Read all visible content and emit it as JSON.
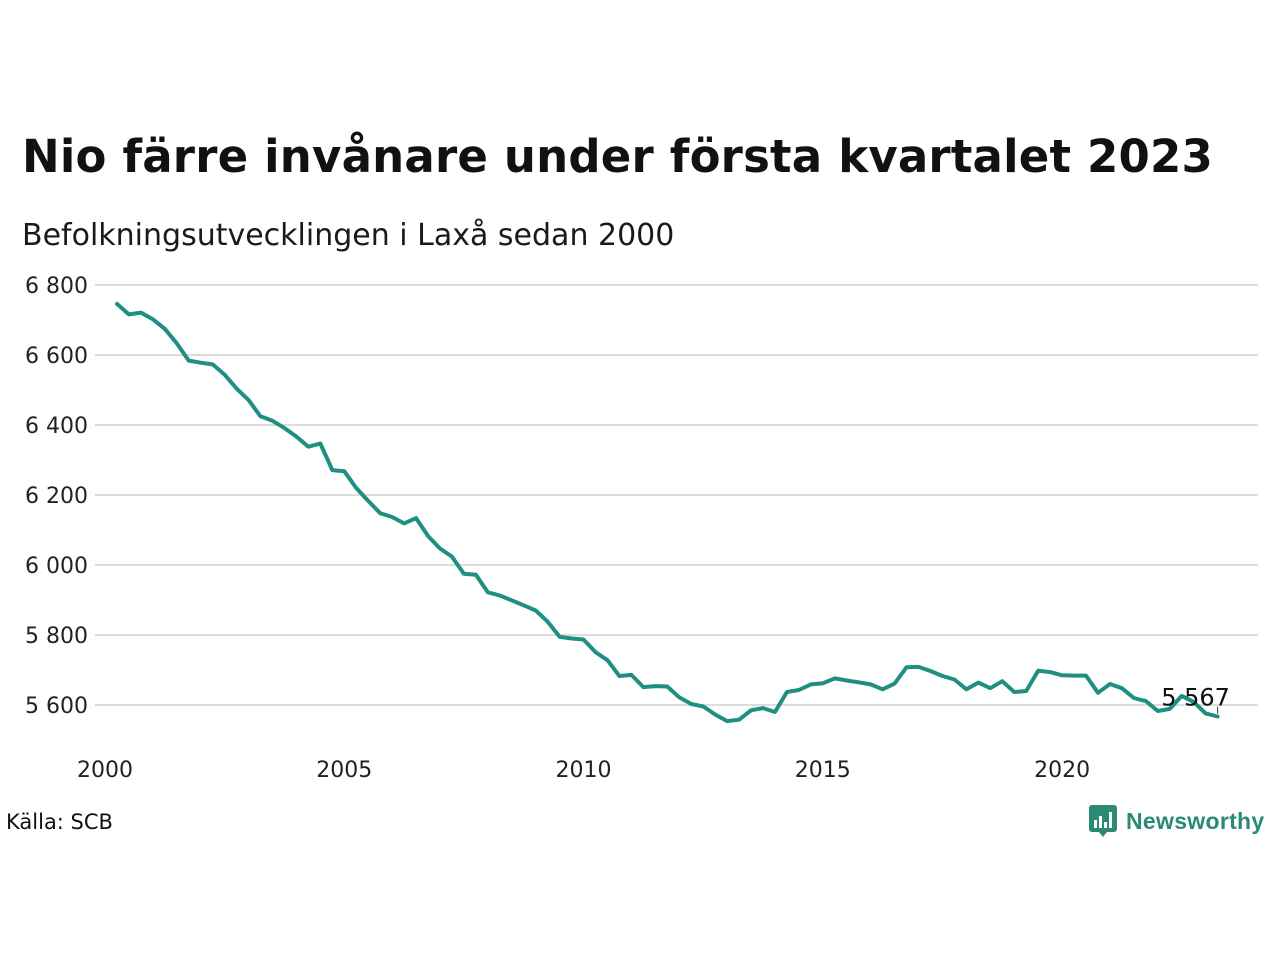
{
  "title": "Nio färre invånare under första kvartalet 2023",
  "subtitle": "Befolkningsutvecklingen i Laxå sedan 2000",
  "source": "Källa: SCB",
  "brand": {
    "name": "Newsworthy",
    "icon": "newsworthy-logo-icon",
    "color": "#2b8a73"
  },
  "chart_data": {
    "type": "line",
    "title": "Nio färre invånare under första kvartalet 2023",
    "subtitle": "Befolkningsutvecklingen i Laxå sedan 2000",
    "xlabel": "",
    "ylabel": "",
    "ylim": [
      5500,
      6800
    ],
    "yticks": [
      5600,
      5800,
      6000,
      6200,
      6400,
      6600,
      6800
    ],
    "ytick_labels": [
      "5 600",
      "5 800",
      "6 000",
      "6 200",
      "6 400",
      "6 600",
      "6 800"
    ],
    "xlim": [
      2000,
      2023.3
    ],
    "xticks": [
      2000,
      2005,
      2010,
      2015,
      2020
    ],
    "xtick_labels": [
      "2000",
      "2005",
      "2010",
      "2015",
      "2020"
    ],
    "grid": "horizontal",
    "line_color": "#1f8f82",
    "end_label": "5 567",
    "series": [
      {
        "x": [
          2000.25,
          2000.5,
          2000.75,
          2001.0,
          2001.25,
          2001.5,
          2001.75,
          2002.0,
          2002.25,
          2002.5,
          2002.75,
          2003.0,
          2003.25,
          2003.5,
          2003.75,
          2004.0,
          2004.25,
          2004.5,
          2004.75,
          2005.0,
          2005.25,
          2005.5,
          2005.75,
          2006.0,
          2006.25,
          2006.5,
          2006.75,
          2007.0,
          2007.25,
          2007.5,
          2007.75,
          2008.0,
          2008.25,
          2008.5,
          2008.75,
          2009.0,
          2009.25,
          2009.5,
          2009.75,
          2010.0,
          2010.25,
          2010.5,
          2010.75,
          2011.0,
          2011.25,
          2011.5,
          2011.75,
          2012.0,
          2012.25,
          2012.5,
          2012.75,
          2013.0,
          2013.25,
          2013.5,
          2013.75,
          2014.0,
          2014.25,
          2014.5,
          2014.75,
          2015.0,
          2015.25,
          2015.5,
          2015.75,
          2016.0,
          2016.25,
          2016.5,
          2016.75,
          2017.0,
          2017.25,
          2017.5,
          2017.75,
          2018.0,
          2018.25,
          2018.5,
          2018.75,
          2019.0,
          2019.25,
          2019.5,
          2019.75,
          2020.0,
          2020.25,
          2020.5,
          2020.75,
          2021.0,
          2021.25,
          2021.5,
          2021.75,
          2022.0,
          2022.25,
          2022.5,
          2022.75,
          2023.0,
          2023.25
        ],
        "values": [
          6746,
          6716,
          6721,
          6702,
          6675,
          6633,
          6584,
          6578,
          6573,
          6544,
          6504,
          6471,
          6425,
          6412,
          6391,
          6367,
          6338,
          6347,
          6271,
          6268,
          6220,
          6183,
          6148,
          6137,
          6119,
          6134,
          6083,
          6047,
          6024,
          5975,
          5972,
          5922,
          5913,
          5899,
          5885,
          5870,
          5838,
          5795,
          5790,
          5787,
          5751,
          5728,
          5683,
          5686,
          5651,
          5654,
          5653,
          5622,
          5603,
          5596,
          5573,
          5554,
          5558,
          5585,
          5591,
          5580,
          5637,
          5643,
          5659,
          5662,
          5676,
          5670,
          5665,
          5659,
          5645,
          5661,
          5708,
          5709,
          5697,
          5683,
          5673,
          5645,
          5664,
          5648,
          5668,
          5637,
          5640,
          5698,
          5694,
          5685,
          5684,
          5684,
          5635,
          5660,
          5648,
          5620,
          5611,
          5583,
          5589,
          5626,
          5609,
          5576,
          5567
        ]
      }
    ]
  }
}
